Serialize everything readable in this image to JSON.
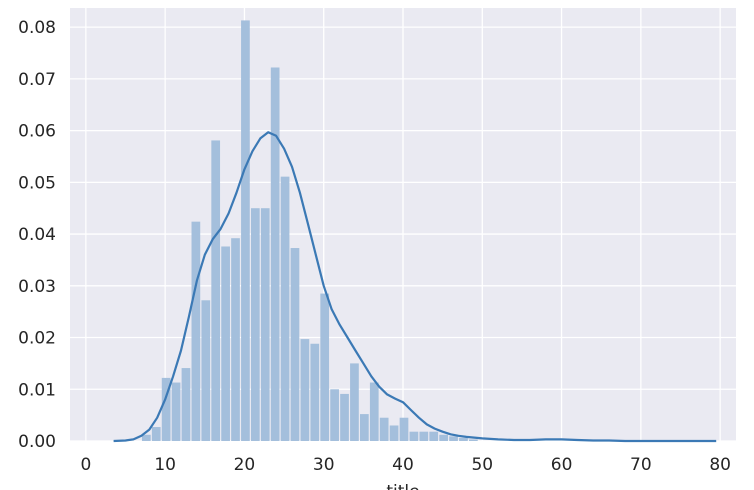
{
  "chart_data": {
    "type": "histogram",
    "xlabel": "title",
    "xlim": [
      -2,
      82
    ],
    "ylim": [
      0,
      0.0837
    ],
    "x_ticks": [
      0,
      10,
      20,
      30,
      40,
      50,
      60,
      70,
      80
    ],
    "y_ticks": [
      0.0,
      0.01,
      0.02,
      0.03,
      0.04,
      0.05,
      0.06,
      0.07,
      0.08
    ],
    "y_tick_labels": [
      "0.00",
      "0.01",
      "0.02",
      "0.03",
      "0.04",
      "0.05",
      "0.06",
      "0.07",
      "0.08"
    ],
    "grid": true,
    "colors": {
      "background": "#eaeaf2",
      "grid": "#ffffff",
      "bars": "#a4bfdc",
      "kde": "#3b79b5"
    },
    "bins": {
      "width": 1.25,
      "edges_start": 7,
      "values": [
        0.0012,
        0.0027,
        0.0122,
        0.0113,
        0.0141,
        0.0424,
        0.0272,
        0.0581,
        0.0376,
        0.0392,
        0.0813,
        0.045,
        0.045,
        0.0722,
        0.0511,
        0.0373,
        0.0197,
        0.0188,
        0.0285,
        0.01,
        0.0091,
        0.015,
        0.0052,
        0.0113,
        0.0045,
        0.003,
        0.0045,
        0.0018,
        0.0018,
        0.0018,
        0.0012,
        0.0009,
        0.0006,
        0.0003
      ]
    },
    "kde": {
      "x": [
        3.5,
        5,
        6,
        7,
        8,
        9,
        10,
        11,
        12,
        13,
        14,
        15,
        16,
        17,
        18,
        19,
        20,
        21,
        22,
        23,
        24,
        25,
        26,
        27,
        28,
        29,
        30,
        31,
        32,
        33,
        34,
        35,
        36,
        37,
        38,
        39,
        40,
        41,
        42,
        43,
        44,
        45,
        46,
        47,
        48,
        50,
        52,
        54,
        56,
        58,
        60,
        62,
        64,
        66,
        68,
        70,
        72,
        74,
        76,
        78,
        79.5
      ],
      "y": [
        0.0,
        0.0001,
        0.0003,
        0.001,
        0.0022,
        0.0045,
        0.008,
        0.0125,
        0.0175,
        0.024,
        0.031,
        0.036,
        0.039,
        0.041,
        0.044,
        0.048,
        0.0525,
        0.056,
        0.0585,
        0.0597,
        0.059,
        0.0565,
        0.053,
        0.048,
        0.042,
        0.036,
        0.03,
        0.0255,
        0.0225,
        0.02,
        0.0175,
        0.015,
        0.0125,
        0.0105,
        0.009,
        0.0082,
        0.0075,
        0.006,
        0.0045,
        0.0032,
        0.0024,
        0.0018,
        0.0013,
        0.001,
        0.0008,
        0.0005,
        0.0003,
        0.0002,
        0.0002,
        0.0003,
        0.0003,
        0.0002,
        0.0001,
        0.0001,
        0.0,
        0.0,
        0.0,
        0.0,
        0.0,
        0.0,
        0.0
      ]
    }
  }
}
